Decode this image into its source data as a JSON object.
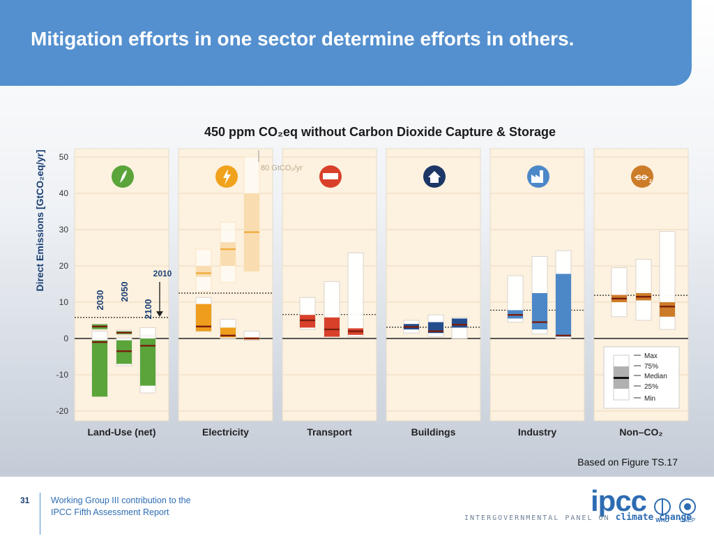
{
  "header": {
    "title": "Mitigation efforts in one sector determine efforts in others."
  },
  "chart_data": {
    "type": "boxplot",
    "title": "450 ppm CO₂eq without Carbon Dioxide Capture & Storage",
    "ylabel": "Direct Emissions [GtCO₂eq/yr]",
    "ylim": [
      -20,
      50
    ],
    "yticks": [
      50,
      40,
      30,
      20,
      10,
      0,
      -10,
      -20
    ],
    "year_labels": [
      "2030",
      "2050",
      "2100"
    ],
    "ref_year_label": "2010",
    "overflow_note": "80 GtCO₂/yr",
    "legend": [
      "Max",
      "75%",
      "Median",
      "25%",
      "Min"
    ],
    "sectors": [
      {
        "name": "Land-Use (net)",
        "icon": "leaf-icon",
        "icon_color": "#5aa43a",
        "box_color": "#5aa43a",
        "ref_2010": 5.8,
        "years": [
          {
            "year": "2030",
            "min": 2.5,
            "q1": 2.6,
            "median": 3.3,
            "q3": 3.9,
            "max": 4.0
          },
          {
            "year": "2050",
            "min": 1.0,
            "q1": 1.2,
            "median": 1.6,
            "q3": 2.0,
            "max": 2.3
          },
          {
            "year": "2100",
            "min": 0.3,
            "q1": 0.5,
            "median": 0.7,
            "q3": 1.0,
            "max": 1.2
          }
        ],
        "sub_years": [
          {
            "year": "2030",
            "min": -16,
            "q1": -16,
            "median": -1.0,
            "q3": -0.5,
            "max": 2.0
          },
          {
            "year": "2050",
            "min": -7.5,
            "q1": -7.0,
            "median": -3.5,
            "q3": -0.5,
            "max": 0.2
          },
          {
            "year": "2100",
            "min": -15,
            "q1": -13,
            "median": -2.0,
            "q3": 0.0,
            "max": 3.0
          }
        ]
      },
      {
        "name": "Electricity",
        "icon": "lightning-icon",
        "icon_color": "#f0a21c",
        "box_color": "#ee9d1c",
        "ref_2010": 12.5,
        "years": [
          {
            "year": "2030",
            "min": 2.0,
            "q1": 2.0,
            "median": 3.3,
            "q3": 9.5,
            "max": 11.3
          },
          {
            "year": "2050",
            "min": 0.0,
            "q1": 0.3,
            "median": 0.8,
            "q3": 3.0,
            "max": 5.3
          },
          {
            "year": "2100",
            "min": -0.5,
            "q1": -0.3,
            "median": 0.0,
            "q3": 0.3,
            "max": 2.0
          }
        ],
        "upper_years": [
          {
            "year": "2030",
            "min": 13,
            "q1": 17,
            "median": 18,
            "q3": 20,
            "max": 24.6
          },
          {
            "year": "2050",
            "min": 15.5,
            "q1": 20,
            "median": 24.6,
            "q3": 26.5,
            "max": 32
          },
          {
            "year": "2100",
            "min": 18.5,
            "q1": 18.5,
            "median": 29.3,
            "q3": 40,
            "max": 50
          }
        ]
      },
      {
        "name": "Transport",
        "icon": "truck-icon",
        "icon_color": "#d9402a",
        "box_color": "#d9402a",
        "ref_2010": 6.6,
        "years": [
          {
            "year": "2030",
            "min": 2.5,
            "q1": 3.0,
            "median": 5.0,
            "q3": 6.5,
            "max": 11.3
          },
          {
            "year": "2050",
            "min": 0.5,
            "q1": 0.5,
            "median": 2.5,
            "q3": 5.8,
            "max": 15.7
          },
          {
            "year": "2100",
            "min": 0.5,
            "q1": 1.0,
            "median": 2.0,
            "q3": 2.8,
            "max": 23.6
          }
        ]
      },
      {
        "name": "Buildings",
        "icon": "house-icon",
        "icon_color": "#1c3766",
        "box_color": "#244d8c",
        "ref_2010": 3.1,
        "years": [
          {
            "year": "2030",
            "min": 1.5,
            "q1": 2.5,
            "median": 3.2,
            "q3": 4.0,
            "max": 5.0
          },
          {
            "year": "2050",
            "min": 0.5,
            "q1": 1.5,
            "median": 2.0,
            "q3": 4.5,
            "max": 6.5
          },
          {
            "year": "2100",
            "min": 0.0,
            "q1": 3.0,
            "median": 3.8,
            "q3": 5.5,
            "max": 5.8
          }
        ]
      },
      {
        "name": "Industry",
        "icon": "factory-icon",
        "icon_color": "#4c88c8",
        "box_color": "#4c88c8",
        "ref_2010": 7.8,
        "years": [
          {
            "year": "2030",
            "min": 4.5,
            "q1": 5.5,
            "median": 6.5,
            "q3": 7.8,
            "max": 17.3
          },
          {
            "year": "2050",
            "min": 1.3,
            "q1": 2.5,
            "median": 4.5,
            "q3": 12.5,
            "max": 22.6
          },
          {
            "year": "2100",
            "min": 0.0,
            "q1": 0.5,
            "median": 0.8,
            "q3": 17.8,
            "max": 24.2
          }
        ]
      },
      {
        "name": "Non–CO₂",
        "icon": "co2-icon",
        "icon_color": "#cc7c28",
        "box_color": "#cc7c28",
        "ref_2010": 11.9,
        "years": [
          {
            "year": "2030",
            "min": 6.0,
            "q1": 10.0,
            "median": 11.0,
            "q3": 12.0,
            "max": 19.5
          },
          {
            "year": "2050",
            "min": 5.0,
            "q1": 10.5,
            "median": 11.5,
            "q3": 12.5,
            "max": 21.8
          },
          {
            "year": "2100",
            "min": 2.5,
            "q1": 6.0,
            "median": 8.8,
            "q3": 10.0,
            "max": 29.5
          }
        ]
      }
    ]
  },
  "source_caption": "Based on Figure TS.17",
  "footer": {
    "page_number": "31",
    "line1": "Working Group III contribution to the",
    "line2": "IPCC Fifth Assessment Report",
    "logo_text": "ipcc",
    "logo_sub": "INTERGOVERNMENTAL PANEL ON",
    "logo_sub2": "climate change",
    "who": "WHO",
    "unep": "UNEP"
  }
}
